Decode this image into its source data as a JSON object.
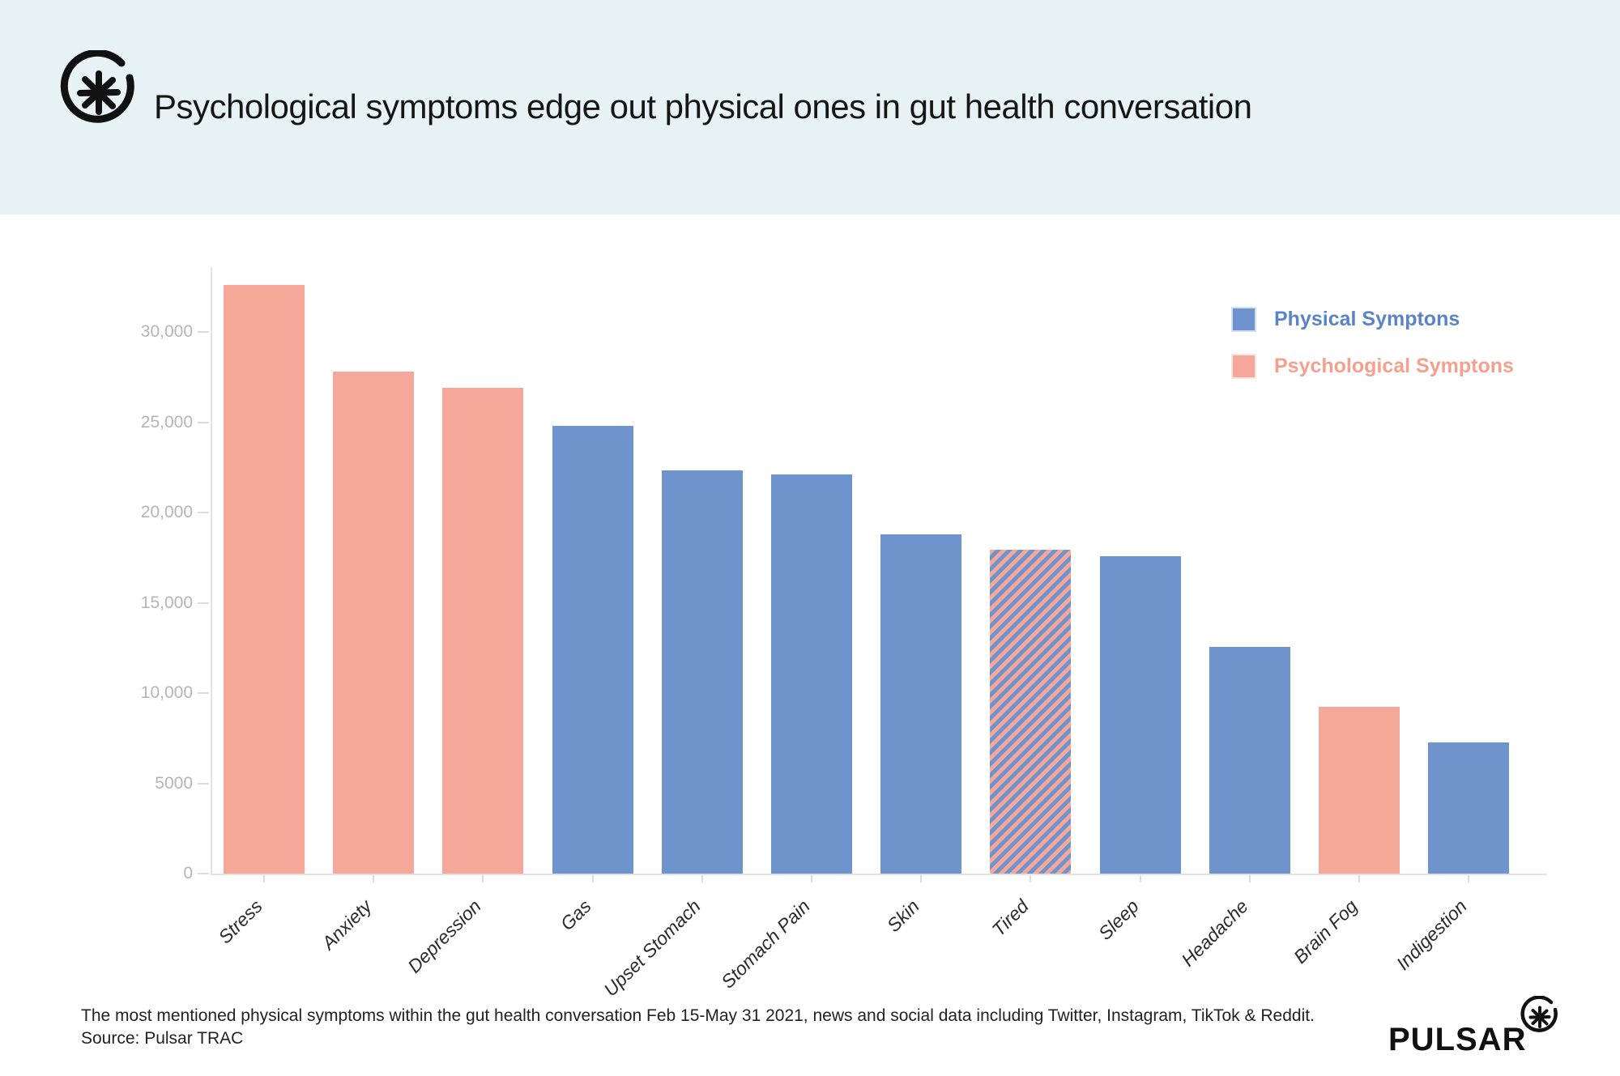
{
  "header": {
    "title": "Psychological symptoms edge out physical ones in gut health conversation",
    "logo_icon": "pulsar-asterisk-mark"
  },
  "legend": {
    "items": [
      {
        "label": "Physical Symptons",
        "color": "#6e93cd",
        "text_color": "#5b84c8"
      },
      {
        "label": "Psychological Symptons",
        "color": "#f5a79a",
        "text_color": "#f4a08f"
      }
    ]
  },
  "chart_data": {
    "type": "bar",
    "title": "Psychological symptoms edge out physical ones in gut health conversation",
    "categories": [
      "Stress",
      "Anxiety",
      "Depression",
      "Gas",
      "Upset Stomach",
      "Stomach Pain",
      "Skin",
      "Tired",
      "Sleep",
      "Headache",
      "Brain Fog",
      "Indigestion"
    ],
    "values": [
      32600,
      27800,
      26900,
      24800,
      22350,
      22100,
      18800,
      17950,
      17600,
      12550,
      9250,
      7250
    ],
    "category_types": [
      "psychological",
      "psychological",
      "psychological",
      "physical",
      "physical",
      "physical",
      "physical",
      "both",
      "physical",
      "physical",
      "psychological",
      "physical"
    ],
    "colors": {
      "physical": "#6e93cd",
      "psychological": "#f5a79a"
    },
    "hatched_category": "Tired",
    "hatch_note": "Tired bar is diagonal blue/salmon stripes (counts as both symptom types)",
    "xlabel": "",
    "ylabel": "",
    "ylim": [
      0,
      33500
    ],
    "yticks": [
      0,
      5000,
      10000,
      15000,
      20000,
      25000,
      30000
    ],
    "ytick_labels": [
      "0",
      "5000",
      "10,000",
      "15,000",
      "20,000",
      "25,000",
      "30,000"
    ],
    "grid": false,
    "legend_position": "top-right"
  },
  "footer": {
    "caption_line1": "The most mentioned physical symptoms within the gut health conversation Feb 15-May 31 2021, news and social data including Twitter, Instagram, TikTok & Reddit.",
    "caption_line2": "Source: Pulsar TRAC",
    "brand_wordmark": "PULSAR"
  },
  "colors": {
    "header_background": "#e7f2f5",
    "page_background": "#ffffff",
    "axis_line": "#e2e2e2",
    "tick_label_text": "#b5b5b5",
    "x_label_text": "#2b2b2b",
    "title_text": "#161616",
    "footer_text": "#222222"
  }
}
